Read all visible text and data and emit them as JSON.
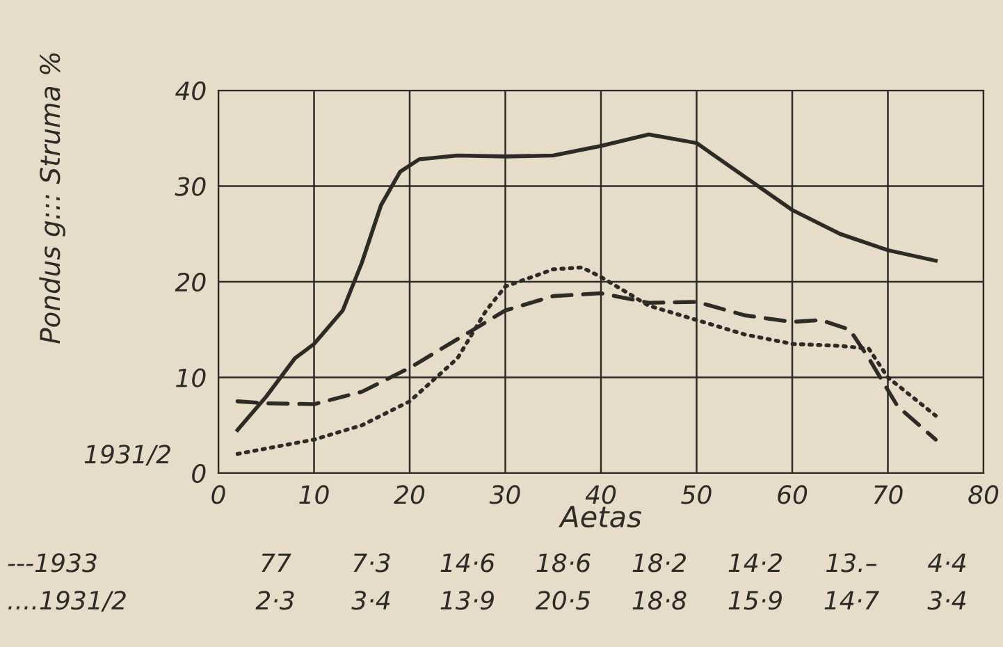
{
  "chart_data": {
    "type": "line",
    "xlabel": "Aetas",
    "ylabel": "Pondus g::: Struma %",
    "xlim": [
      0,
      80
    ],
    "ylim": [
      0,
      40
    ],
    "xticks": [
      0,
      10,
      20,
      30,
      40,
      50,
      60,
      70,
      80
    ],
    "yticks": [
      0,
      10,
      20,
      30,
      40
    ],
    "grid": true,
    "series": [
      {
        "color": "#2e2a26",
        "line_style": "solid",
        "x": [
          2,
          5,
          8,
          10,
          13,
          15,
          17,
          19,
          21,
          25,
          30,
          35,
          40,
          45,
          50,
          55,
          60,
          65,
          70,
          75
        ],
        "values": [
          4.5,
          8,
          12,
          13.5,
          17,
          22,
          28,
          31.5,
          32.8,
          33.2,
          33.1,
          33.2,
          34.2,
          35.4,
          34.5,
          31,
          27.5,
          25,
          23.3,
          22.2
        ]
      },
      {
        "color": "#2e2a26",
        "line_style": "dashed",
        "x": [
          2,
          5,
          10,
          15,
          20,
          25,
          30,
          35,
          40,
          45,
          50,
          55,
          60,
          63,
          66,
          68,
          71,
          75
        ],
        "values": [
          7.5,
          7.3,
          7.2,
          8.5,
          11,
          14,
          17,
          18.5,
          18.8,
          17.8,
          17.9,
          16.5,
          15.8,
          16,
          15,
          12,
          7,
          3.5
        ]
      },
      {
        "color": "#2e2a26",
        "line_style": "dotted",
        "x": [
          2,
          10,
          15,
          20,
          25,
          28,
          30,
          35,
          38,
          40,
          45,
          50,
          55,
          60,
          65,
          68,
          70,
          75
        ],
        "values": [
          2,
          3.5,
          5,
          7.5,
          12,
          17,
          19.5,
          21.3,
          21.5,
          20.5,
          17.5,
          16,
          14.5,
          13.5,
          13.3,
          13,
          10,
          6
        ]
      }
    ],
    "annotations": [
      "1931/2",
      "---1933",
      "77",
      "7·3",
      "14·6",
      "18·6",
      "18·2",
      "14·2",
      "13.–",
      "4·4",
      "....1931/2",
      "2·3",
      "3·4",
      "13·9",
      "20·5",
      "18·8",
      "15·9",
      "14·7",
      "3·4"
    ]
  }
}
